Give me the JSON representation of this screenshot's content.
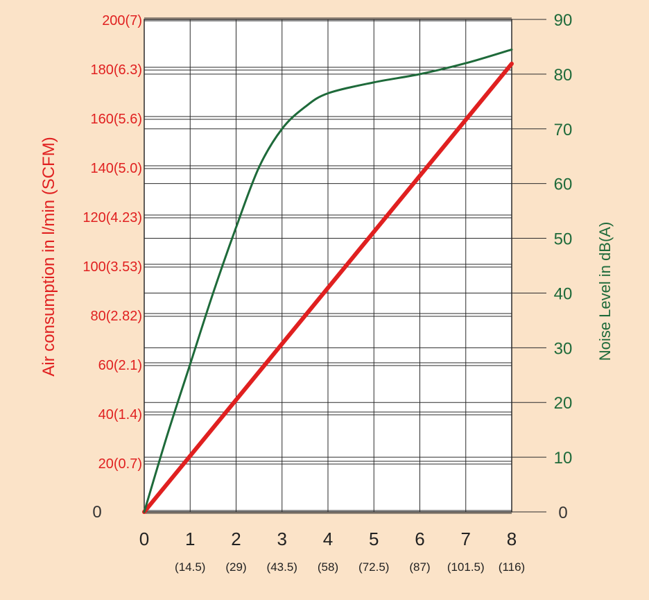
{
  "chart_data": {
    "type": "line",
    "title": "",
    "ylabel_left": "Air consumption in l/min (SCFM)",
    "ylabel_right": "Noise Level in dB(A)",
    "x_ticks": [
      {
        "value": 0,
        "label": "0",
        "sub": ""
      },
      {
        "value": 1,
        "label": "1",
        "sub": "(14.5)"
      },
      {
        "value": 2,
        "label": "2",
        "sub": "(29)"
      },
      {
        "value": 3,
        "label": "3",
        "sub": "(43.5)"
      },
      {
        "value": 4,
        "label": "4",
        "sub": "(58)"
      },
      {
        "value": 5,
        "label": "5",
        "sub": "(72.5)"
      },
      {
        "value": 6,
        "label": "6",
        "sub": "(87)"
      },
      {
        "value": 7,
        "label": "7",
        "sub": "(101.5)"
      },
      {
        "value": 8,
        "label": "8",
        "sub": "(116)"
      }
    ],
    "xlim": [
      0,
      8
    ],
    "y_left_ticks": [
      {
        "value": 0,
        "label": "0"
      },
      {
        "value": 20,
        "label": "20(0.7)"
      },
      {
        "value": 40,
        "label": "40(1.4)"
      },
      {
        "value": 60,
        "label": "60(2.1)"
      },
      {
        "value": 80,
        "label": "80(2.82)"
      },
      {
        "value": 100,
        "label": "100(3.53)"
      },
      {
        "value": 120,
        "label": "120(4.23)"
      },
      {
        "value": 140,
        "label": "140(5.0)"
      },
      {
        "value": 160,
        "label": "160(5.6)"
      },
      {
        "value": 180,
        "label": "180(6.3)"
      },
      {
        "value": 200,
        "label": "200(7)"
      }
    ],
    "ylim_left": [
      0,
      200
    ],
    "y_right_ticks": [
      "0",
      "10",
      "20",
      "30",
      "40",
      "50",
      "60",
      "70",
      "80",
      "90"
    ],
    "ylim_right": [
      0,
      90
    ],
    "grid": true,
    "series": [
      {
        "axis": "left",
        "color": "#e02020",
        "x": [
          0,
          8
        ],
        "values": [
          0,
          182
        ]
      },
      {
        "axis": "right",
        "color": "#1e6a3a",
        "x": [
          0,
          0.5,
          1,
          1.5,
          2,
          2.5,
          3,
          3.5,
          4,
          5,
          6,
          7,
          8
        ],
        "values": [
          0,
          14,
          27,
          40,
          52,
          63,
          70,
          74,
          76.5,
          78.5,
          80,
          82,
          84.5
        ]
      }
    ]
  }
}
